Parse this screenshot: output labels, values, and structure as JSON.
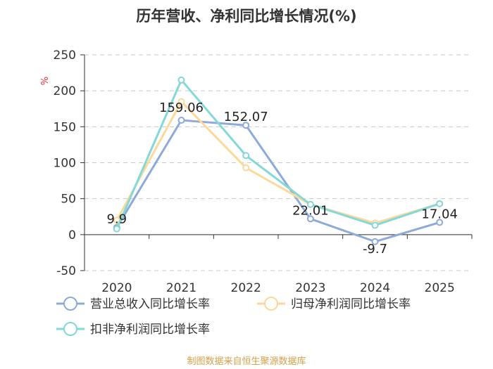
{
  "chart_data": {
    "type": "line",
    "title": "历年营收、净利同比增长情况(%)",
    "ylabel": "%",
    "categories": [
      "2020",
      "2021",
      "2022",
      "2023",
      "2024",
      "2025"
    ],
    "ylim": [
      -50,
      250
    ],
    "yticks": [
      "250",
      "200",
      "150",
      "100",
      "50",
      "0",
      "-50"
    ],
    "grid": true,
    "legend_position": "bottom",
    "series": [
      {
        "name": "营业总收入同比增长率",
        "color": "#8eaad8",
        "values": [
          9.9,
          159.06,
          152.07,
          22.01,
          -9.7,
          17.04
        ],
        "labels": [
          "9.9",
          "159.06",
          "152.07",
          "22.01",
          "-9.7",
          "17.04"
        ]
      },
      {
        "name": "归母净利润同比增长率",
        "color": "#fbd99a",
        "values": [
          20,
          185,
          93,
          42,
          16,
          43
        ]
      },
      {
        "name": "扣非净利润同比增长率",
        "color": "#84d8d8",
        "values": [
          8,
          215,
          110,
          42,
          13,
          43
        ]
      }
    ],
    "source": "制图数据来自恒生聚源数据库"
  }
}
